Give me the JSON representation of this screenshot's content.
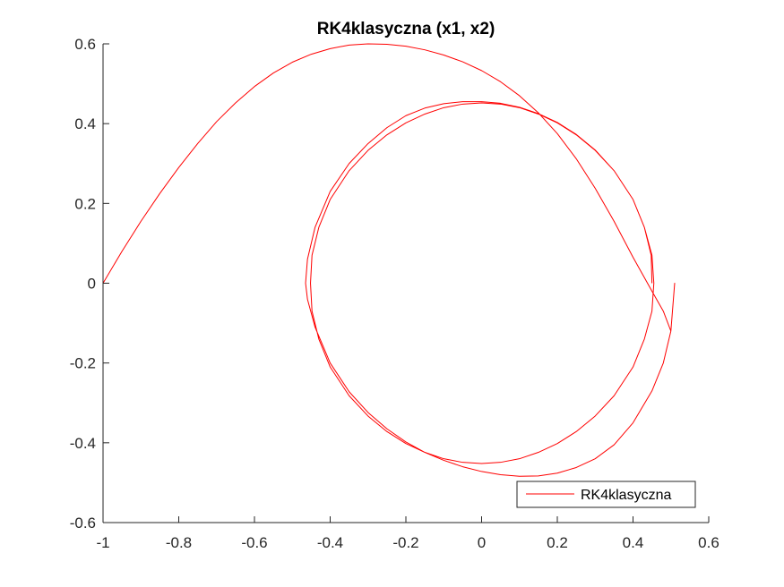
{
  "chart_data": {
    "type": "line",
    "title": "RK4klasyczna (x1, x2)",
    "xlabel": "",
    "ylabel": "",
    "xlim": [
      -1,
      0.6
    ],
    "ylim": [
      -0.6,
      0.6
    ],
    "xticks": [
      -1,
      -0.8,
      -0.6,
      -0.4,
      -0.2,
      0,
      0.2,
      0.4,
      0.6
    ],
    "xtick_labels": [
      "-1",
      "-0.8",
      "-0.6",
      "-0.4",
      "-0.2",
      "0",
      "0.2",
      "0.4",
      "0.6"
    ],
    "yticks": [
      -0.6,
      -0.4,
      -0.2,
      0,
      0.2,
      0.4,
      0.6
    ],
    "ytick_labels": [
      "-0.6",
      "-0.4",
      "-0.2",
      "0",
      "0.2",
      "0.4",
      "0.6"
    ],
    "grid": false,
    "legend_position": "bottom-right",
    "series": [
      {
        "name": "RK4klasyczna",
        "color": "#ff0000",
        "x": [
          -1.0,
          -0.95,
          -0.9,
          -0.85,
          -0.8,
          -0.75,
          -0.7,
          -0.65,
          -0.6,
          -0.55,
          -0.5,
          -0.45,
          -0.4,
          -0.35,
          -0.3,
          -0.25,
          -0.2,
          -0.15,
          -0.1,
          -0.05,
          0.0,
          0.05,
          0.1,
          0.15,
          0.2,
          0.25,
          0.3,
          0.35,
          0.4,
          0.45,
          0.48,
          0.5,
          0.51,
          0.5,
          0.48,
          0.45,
          0.4,
          0.35,
          0.3,
          0.25,
          0.2,
          0.15,
          0.1,
          0.05,
          0.0,
          -0.05,
          -0.1,
          -0.15,
          -0.2,
          -0.25,
          -0.3,
          -0.35,
          -0.4,
          -0.44,
          -0.46,
          -0.465,
          -0.46,
          -0.44,
          -0.4,
          -0.35,
          -0.3,
          -0.25,
          -0.2,
          -0.15,
          -0.1,
          -0.05,
          0.0,
          0.05,
          0.1,
          0.15,
          0.2,
          0.25,
          0.3,
          0.35,
          0.4,
          0.43,
          0.45,
          0.455,
          0.45,
          0.43,
          0.4,
          0.35,
          0.3,
          0.25,
          0.2,
          0.15,
          0.1,
          0.05,
          0.0,
          -0.05,
          -0.1,
          -0.15,
          -0.2,
          -0.25,
          -0.3,
          -0.35,
          -0.4,
          -0.43,
          -0.448,
          -0.452,
          -0.448,
          -0.43,
          -0.4,
          -0.35,
          -0.3,
          -0.25,
          -0.2,
          -0.15,
          -0.1,
          -0.05,
          0.0,
          0.05,
          0.1,
          0.15,
          0.2,
          0.25,
          0.3,
          0.35,
          0.4,
          0.43,
          0.448,
          0.45
        ],
        "y": [
          0.0,
          0.08,
          0.155,
          0.225,
          0.29,
          0.35,
          0.405,
          0.452,
          0.493,
          0.527,
          0.554,
          0.574,
          0.588,
          0.597,
          0.6,
          0.599,
          0.594,
          0.585,
          0.572,
          0.555,
          0.533,
          0.505,
          0.47,
          0.427,
          0.375,
          0.312,
          0.238,
          0.155,
          0.065,
          -0.02,
          -0.07,
          -0.12,
          -0.0,
          -0.12,
          -0.2,
          -0.27,
          -0.35,
          -0.405,
          -0.44,
          -0.462,
          -0.476,
          -0.483,
          -0.484,
          -0.48,
          -0.472,
          -0.46,
          -0.444,
          -0.424,
          -0.398,
          -0.365,
          -0.324,
          -0.272,
          -0.2,
          -0.11,
          -0.04,
          0.0,
          0.06,
          0.14,
          0.23,
          0.3,
          0.35,
          0.39,
          0.42,
          0.439,
          0.45,
          0.455,
          0.455,
          0.451,
          0.441,
          0.425,
          0.403,
          0.373,
          0.334,
          0.282,
          0.21,
          0.14,
          0.07,
          0.0,
          -0.07,
          -0.14,
          -0.21,
          -0.282,
          -0.333,
          -0.372,
          -0.402,
          -0.424,
          -0.44,
          -0.449,
          -0.452,
          -0.449,
          -0.44,
          -0.424,
          -0.402,
          -0.372,
          -0.333,
          -0.282,
          -0.21,
          -0.14,
          -0.07,
          0.0,
          0.07,
          0.14,
          0.21,
          0.282,
          0.333,
          0.372,
          0.402,
          0.424,
          0.44,
          0.449,
          0.452,
          0.449,
          0.44,
          0.424,
          0.402,
          0.372,
          0.333,
          0.282,
          0.21,
          0.14,
          0.07,
          0.0
        ]
      }
    ]
  }
}
